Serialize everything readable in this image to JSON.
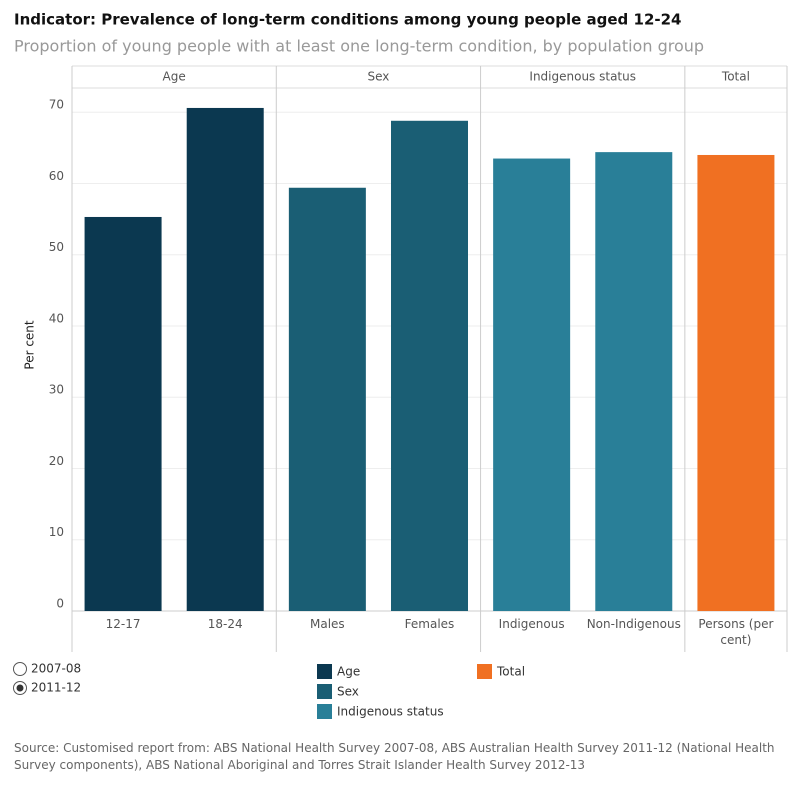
{
  "chart_data": {
    "type": "bar",
    "title": "Indicator: Prevalence of long-term conditions among young people aged 12-24",
    "subtitle": "Proportion of young people with at least one long-term condition, by population group",
    "y_label": "Per cent",
    "categories": [
      "12-17",
      "18-24",
      "Males",
      "Females",
      "Indigenous",
      "Non-Indigenous",
      "Persons (per cent)"
    ],
    "series": [
      {
        "name": "Age",
        "color": "#0b3850",
        "values": [
          55.3,
          70.6,
          null,
          null,
          null,
          null,
          null
        ]
      },
      {
        "name": "Sex",
        "color": "#1a5e74",
        "values": [
          null,
          null,
          59.4,
          68.8,
          null,
          null,
          null
        ]
      },
      {
        "name": "Indigenous status",
        "color": "#297f98",
        "values": [
          null,
          null,
          null,
          null,
          63.5,
          64.4,
          null
        ]
      },
      {
        "name": "Total",
        "color": "#f07022",
        "values": [
          null,
          null,
          null,
          null,
          null,
          null,
          64.0
        ]
      }
    ],
    "ylim": [
      0,
      73.4
    ],
    "yticks": [
      0,
      10,
      20,
      30,
      40,
      50,
      60,
      70
    ],
    "grid": true,
    "controls": {
      "options": [
        "2007-08",
        "2011-12"
      ],
      "selected": "2011-12"
    },
    "source": "Source: Customised report from: ABS National Health Survey 2007-08, ABS Australian Health Survey 2011-12 (National Health Survey components), ABS National Aboriginal and Torres Strait Islander Health Survey 2012-13"
  }
}
